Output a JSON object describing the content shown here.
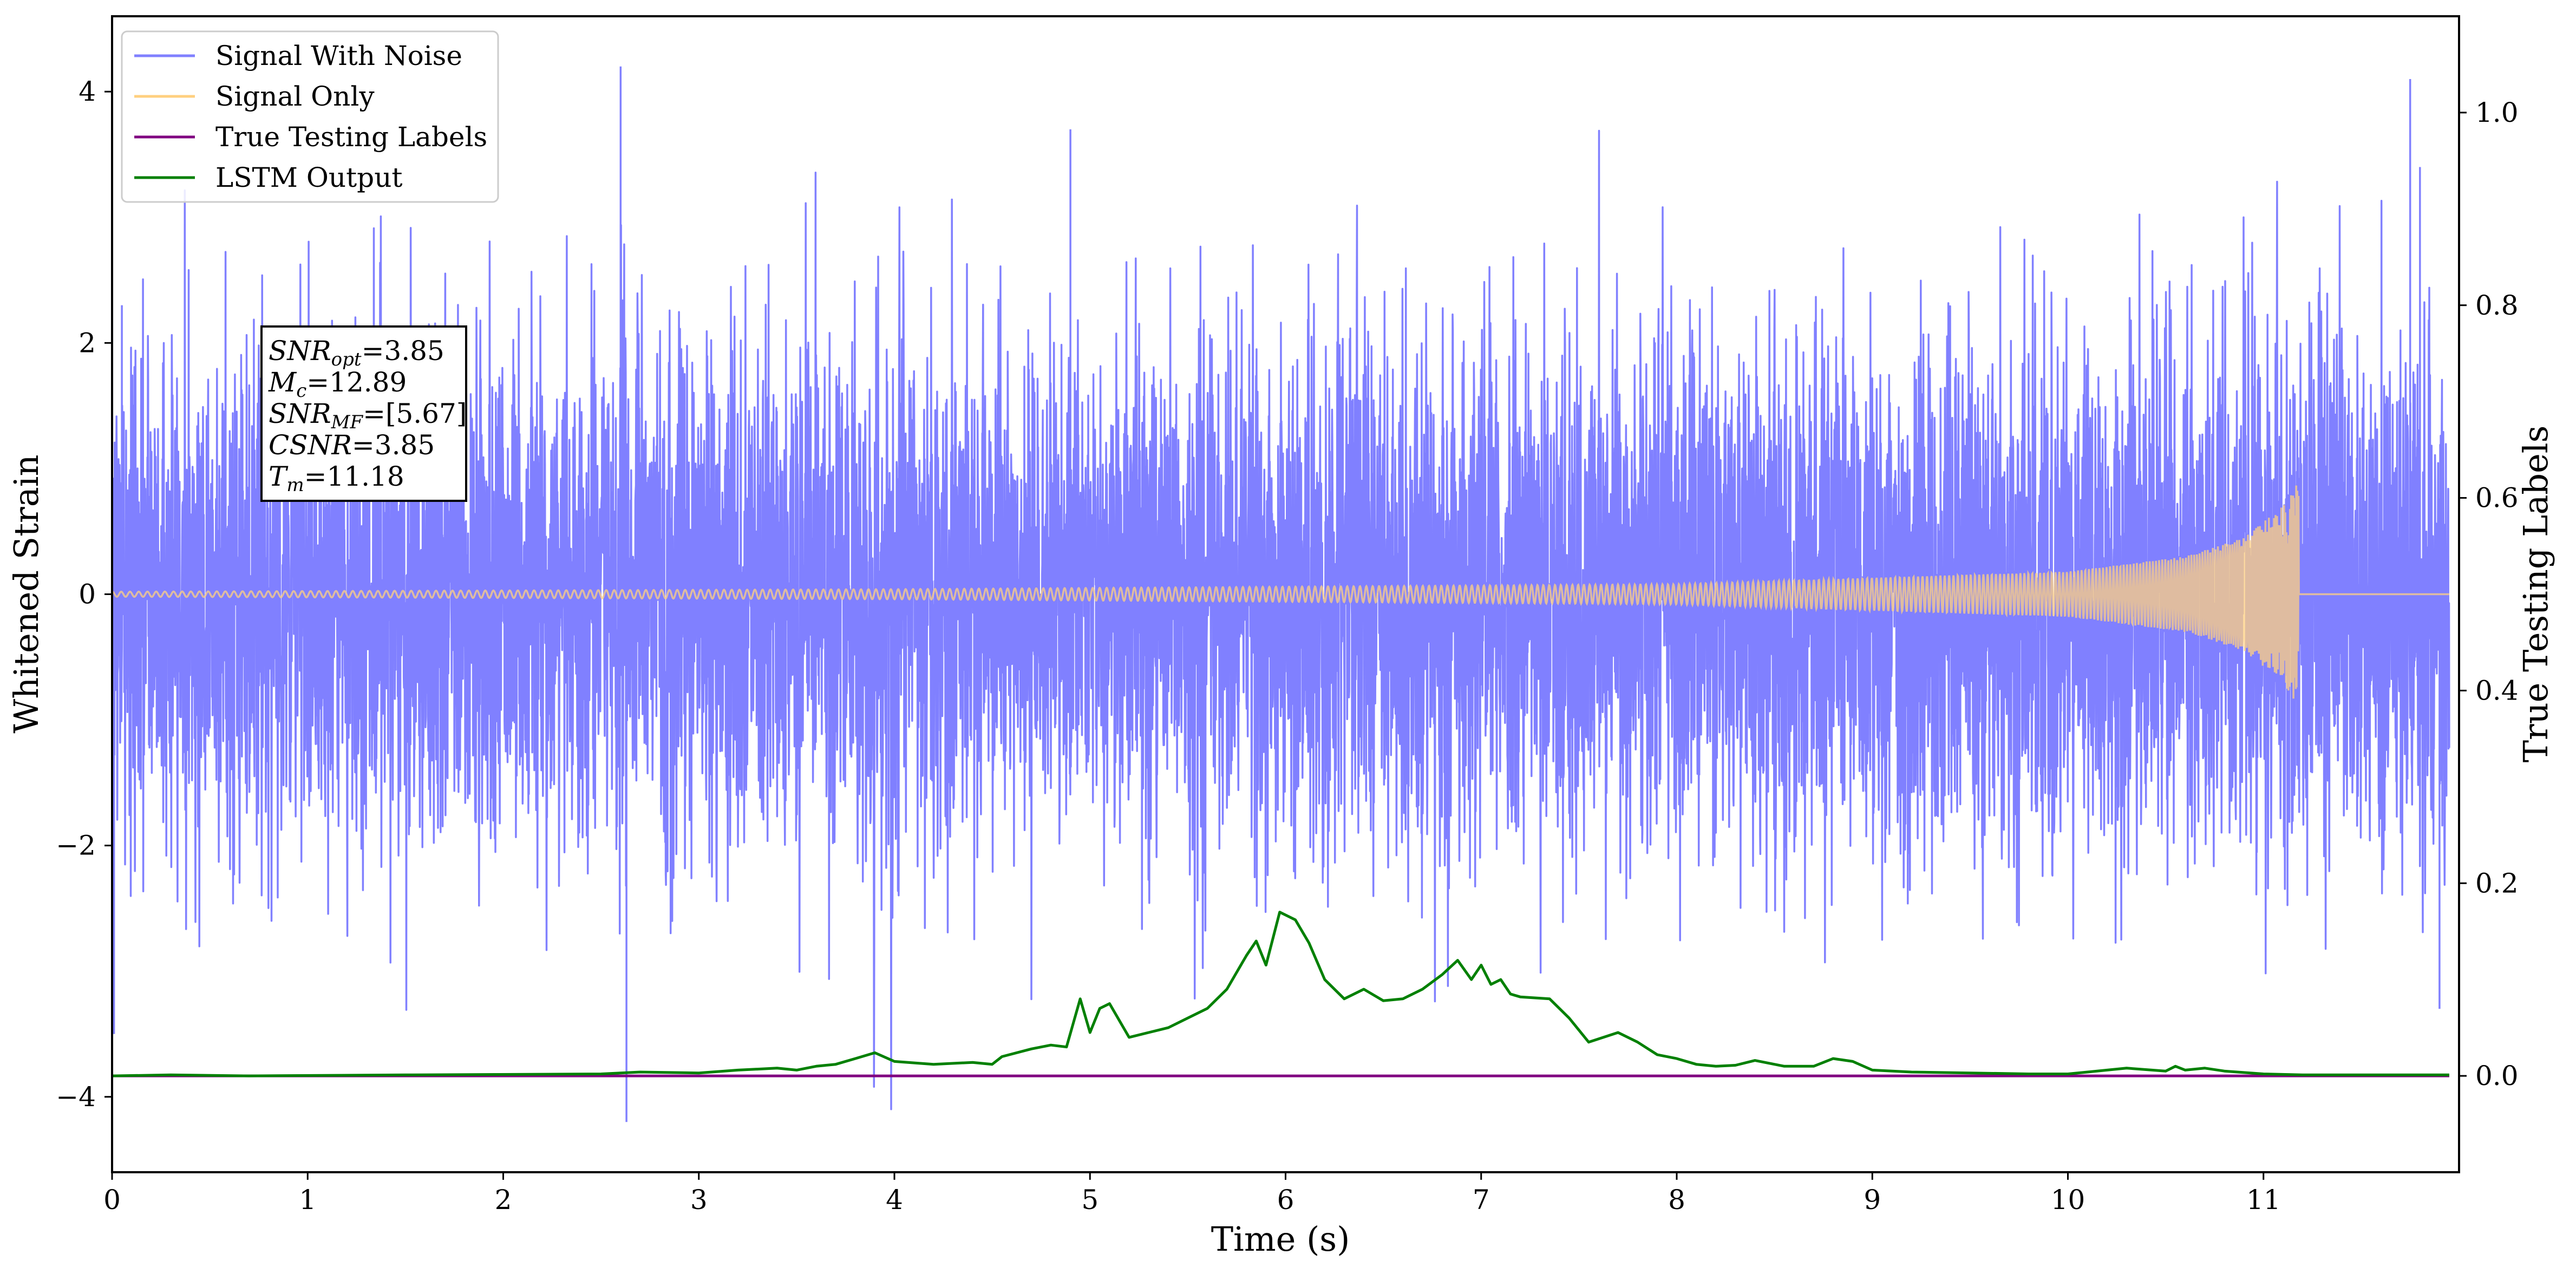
{
  "chart_data": {
    "type": "line",
    "title": "",
    "xlabel": "Time (s)",
    "ylabel": "Whitened Strain",
    "ylabel_right": "True Testing Labels",
    "xlim": [
      0,
      12
    ],
    "ylim": [
      -4.6,
      4.6
    ],
    "ylim_right": [
      -0.1,
      1.1
    ],
    "x_ticks": [
      0,
      1,
      2,
      3,
      4,
      5,
      6,
      7,
      8,
      9,
      10,
      11
    ],
    "y_ticks": [
      -4,
      -2,
      0,
      2,
      4
    ],
    "y_ticks_right": [
      0.0,
      0.2,
      0.4,
      0.6,
      0.8,
      1.0
    ],
    "legend_position": "top-left",
    "grid": false,
    "series": [
      {
        "name": "Signal With Noise",
        "axis": "left",
        "color": "#8080ff",
        "style": "gaussian noise band, approx. sigma 1.0, peaks to about +4.2 and -4.2",
        "notable_points": [
          {
            "x": 0.05,
            "y": 2.3
          },
          {
            "x": 0.01,
            "y": -3.5
          },
          {
            "x": 2.6,
            "y": 4.2
          },
          {
            "x": 2.63,
            "y": -4.2
          },
          {
            "x": 4.9,
            "y": 3.7
          },
          {
            "x": 11.75,
            "y": 4.1
          },
          {
            "x": 11.8,
            "y": 3.4
          },
          {
            "x": 11.9,
            "y": -3.3
          }
        ]
      },
      {
        "name": "Signal Only",
        "axis": "left",
        "color": "#ffd080",
        "style": "chirp waveform ending at merger",
        "merger_time": 11.18,
        "envelope": [
          {
            "x": 0,
            "y": 0.02
          },
          {
            "x": 4,
            "y": 0.04
          },
          {
            "x": 8,
            "y": 0.08
          },
          {
            "x": 10,
            "y": 0.18
          },
          {
            "x": 10.6,
            "y": 0.3
          },
          {
            "x": 10.9,
            "y": 0.45
          },
          {
            "x": 11.1,
            "y": 0.7
          },
          {
            "x": 11.18,
            "y": 0.9
          }
        ]
      },
      {
        "name": "True Testing Labels",
        "axis": "right",
        "color": "#800080",
        "x": [
          0,
          11.95
        ],
        "y": [
          0.0,
          0.0
        ]
      },
      {
        "name": "LSTM Output",
        "axis": "right",
        "color": "#008000",
        "x": [
          0,
          0.3,
          0.7,
          1.5,
          2.5,
          2.7,
          3.0,
          3.2,
          3.4,
          3.5,
          3.6,
          3.7,
          3.8,
          3.9,
          4.0,
          4.2,
          4.4,
          4.5,
          4.55,
          4.7,
          4.8,
          4.88,
          4.95,
          5.0,
          5.05,
          5.1,
          5.2,
          5.3,
          5.4,
          5.5,
          5.6,
          5.7,
          5.8,
          5.85,
          5.9,
          5.97,
          6.05,
          6.12,
          6.2,
          6.3,
          6.4,
          6.5,
          6.6,
          6.7,
          6.8,
          6.88,
          6.95,
          7.0,
          7.05,
          7.1,
          7.15,
          7.2,
          7.35,
          7.45,
          7.55,
          7.7,
          7.8,
          7.9,
          8.0,
          8.1,
          8.2,
          8.3,
          8.4,
          8.55,
          8.7,
          8.8,
          8.9,
          9.0,
          9.2,
          9.5,
          9.8,
          10.0,
          10.1,
          10.2,
          10.3,
          10.5,
          10.55,
          10.6,
          10.7,
          10.8,
          11.0,
          11.2,
          11.5,
          11.95
        ],
        "y": [
          0.0,
          0.001,
          0.0,
          0.001,
          0.002,
          0.004,
          0.003,
          0.006,
          0.008,
          0.006,
          0.01,
          0.012,
          0.018,
          0.024,
          0.015,
          0.012,
          0.014,
          0.012,
          0.02,
          0.028,
          0.032,
          0.03,
          0.08,
          0.045,
          0.07,
          0.075,
          0.04,
          0.045,
          0.05,
          0.06,
          0.07,
          0.09,
          0.125,
          0.14,
          0.115,
          0.17,
          0.162,
          0.138,
          0.1,
          0.08,
          0.09,
          0.078,
          0.08,
          0.09,
          0.105,
          0.12,
          0.1,
          0.115,
          0.095,
          0.1,
          0.085,
          0.082,
          0.08,
          0.06,
          0.035,
          0.045,
          0.035,
          0.022,
          0.018,
          0.012,
          0.01,
          0.011,
          0.016,
          0.01,
          0.01,
          0.018,
          0.015,
          0.006,
          0.004,
          0.003,
          0.002,
          0.002,
          0.004,
          0.006,
          0.008,
          0.005,
          0.01,
          0.006,
          0.008,
          0.005,
          0.002,
          0.001,
          0.001,
          0.001
        ]
      }
    ],
    "annotation_box": {
      "lines": [
        {
          "var": "SNR",
          "sub": "opt",
          "value": "=3.85"
        },
        {
          "var": "M",
          "sub": "c",
          "value": "=12.89"
        },
        {
          "var": "SNR",
          "sub": "MF",
          "value": "=[5.67]"
        },
        {
          "var": "CSNR",
          "sub": "",
          "value": "=3.85"
        },
        {
          "var": "T",
          "sub": "m",
          "value": "=11.18"
        }
      ]
    }
  }
}
